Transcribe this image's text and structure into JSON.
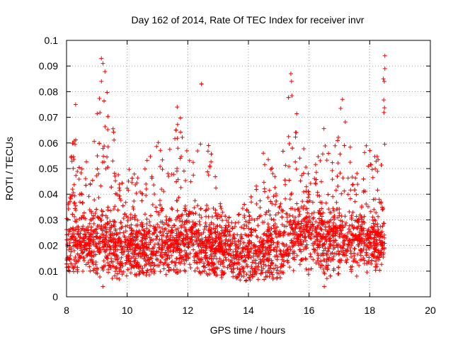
{
  "chart_data": {
    "type": "scatter",
    "title": "Day 162 of 2014, Rate Of TEC Index for receiver invr",
    "xlabel": "GPS time / hours",
    "ylabel": "ROTI / TECUs",
    "xlim": [
      8,
      20
    ],
    "ylim": [
      0,
      0.1
    ],
    "xticks": [
      8,
      10,
      12,
      14,
      16,
      18,
      20
    ],
    "yticks": [
      0,
      0.01,
      0.02,
      0.03,
      0.04,
      0.05,
      0.06,
      0.07,
      0.08,
      0.09,
      0.1
    ],
    "x_tick_labels": [
      "8",
      "10",
      "12",
      "14",
      "16",
      "18",
      "20"
    ],
    "y_tick_labels": [
      "0",
      "0.01",
      "0.02",
      "0.03",
      "0.04",
      "0.05",
      "0.06",
      "0.07",
      "0.08",
      "0.09",
      "0.1"
    ],
    "grid": true,
    "marker": "+",
    "series": [
      {
        "name": "ROTI",
        "color": "#ff0000",
        "data_range_hours": [
          8.0,
          18.5
        ],
        "baseline_profile": [
          [
            8.0,
            0.019
          ],
          [
            9.0,
            0.021
          ],
          [
            10.0,
            0.018
          ],
          [
            11.0,
            0.019
          ],
          [
            12.0,
            0.022
          ],
          [
            13.0,
            0.018
          ],
          [
            13.8,
            0.015
          ],
          [
            14.5,
            0.017
          ],
          [
            15.5,
            0.022
          ],
          [
            16.0,
            0.025
          ],
          [
            16.5,
            0.02
          ],
          [
            17.0,
            0.022
          ],
          [
            18.0,
            0.021
          ],
          [
            18.5,
            0.02
          ]
        ],
        "upper_envelope": [
          [
            8.0,
            0.045
          ],
          [
            8.3,
            0.068
          ],
          [
            8.5,
            0.05
          ],
          [
            8.9,
            0.06
          ],
          [
            9.2,
            0.093
          ],
          [
            9.5,
            0.07
          ],
          [
            9.8,
            0.05
          ],
          [
            10.5,
            0.05
          ],
          [
            11.0,
            0.062
          ],
          [
            11.3,
            0.05
          ],
          [
            11.6,
            0.075
          ],
          [
            12.0,
            0.065
          ],
          [
            12.3,
            0.07
          ],
          [
            12.5,
            0.083
          ],
          [
            12.8,
            0.06
          ],
          [
            13.0,
            0.04
          ],
          [
            13.5,
            0.032
          ],
          [
            14.0,
            0.038
          ],
          [
            14.5,
            0.058
          ],
          [
            15.0,
            0.045
          ],
          [
            15.4,
            0.087
          ],
          [
            15.7,
            0.065
          ],
          [
            16.0,
            0.05
          ],
          [
            16.5,
            0.067
          ],
          [
            17.1,
            0.077
          ],
          [
            17.5,
            0.05
          ],
          [
            18.0,
            0.062
          ],
          [
            18.3,
            0.055
          ],
          [
            18.5,
            0.095
          ]
        ],
        "lower_bound": [
          [
            8.0,
            0.01
          ],
          [
            9.2,
            0.004
          ],
          [
            10.0,
            0.008
          ],
          [
            12.0,
            0.009
          ],
          [
            14.0,
            0.006
          ],
          [
            16.0,
            0.008
          ],
          [
            16.5,
            0.004
          ],
          [
            18.5,
            0.008
          ]
        ],
        "notable_points": [
          [
            8.3,
            0.075
          ],
          [
            9.15,
            0.093
          ],
          [
            9.2,
            0.091
          ],
          [
            9.15,
            0.084
          ],
          [
            11.65,
            0.074
          ],
          [
            12.45,
            0.083
          ],
          [
            15.4,
            0.087
          ],
          [
            15.42,
            0.084
          ],
          [
            17.1,
            0.077
          ],
          [
            18.5,
            0.094
          ],
          [
            18.5,
            0.089
          ],
          [
            18.45,
            0.085
          ],
          [
            9.2,
            0.004
          ],
          [
            16.5,
            0.004
          ]
        ]
      }
    ]
  }
}
